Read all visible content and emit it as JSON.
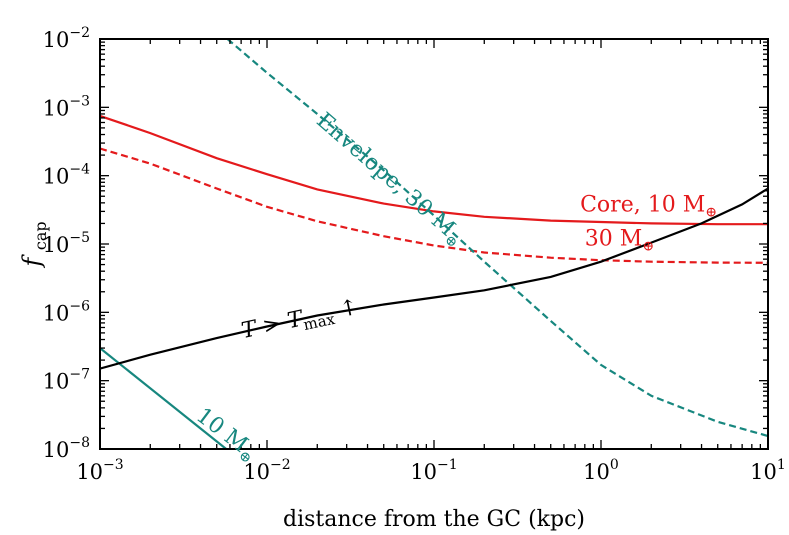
{
  "chart_data": {
    "type": "line",
    "xscale": "log",
    "yscale": "log",
    "xlim": [
      0.001,
      10
    ],
    "ylim": [
      1e-08,
      0.01
    ],
    "xlabel": "distance from the GC (kpc)",
    "ylabel": {
      "main": "f",
      "sub": "cap"
    },
    "grid": false,
    "x_ticks": [
      {
        "base": "10",
        "exp": "−3",
        "value": 0.001
      },
      {
        "base": "10",
        "exp": "−2",
        "value": 0.01
      },
      {
        "base": "10",
        "exp": "−1",
        "value": 0.1
      },
      {
        "base": "10",
        "exp": "0",
        "value": 1
      },
      {
        "base": "10",
        "exp": "1",
        "value": 10
      }
    ],
    "y_ticks": [
      {
        "base": "10",
        "exp": "−8",
        "value": 1e-08
      },
      {
        "base": "10",
        "exp": "−7",
        "value": 1e-07
      },
      {
        "base": "10",
        "exp": "−6",
        "value": 1e-06
      },
      {
        "base": "10",
        "exp": "−5",
        "value": 1e-05
      },
      {
        "base": "10",
        "exp": "−4",
        "value": 0.0001
      },
      {
        "base": "10",
        "exp": "−3",
        "value": 0.001
      },
      {
        "base": "10",
        "exp": "−2",
        "value": 0.01
      }
    ],
    "series": [
      {
        "name": "core-10",
        "color": "#e41a1c",
        "dash": "solid",
        "points": [
          [
            0.001,
            0.00075
          ],
          [
            0.002,
            0.00042
          ],
          [
            0.005,
            0.00018
          ],
          [
            0.01,
            0.000105
          ],
          [
            0.02,
            6.3e-05
          ],
          [
            0.05,
            3.9e-05
          ],
          [
            0.1,
            3e-05
          ],
          [
            0.2,
            2.5e-05
          ],
          [
            0.5,
            2.2e-05
          ],
          [
            1,
            2.1e-05
          ],
          [
            2,
            2e-05
          ],
          [
            5,
            1.95e-05
          ],
          [
            10,
            1.95e-05
          ]
        ]
      },
      {
        "name": "core-30",
        "color": "#e41a1c",
        "dash": "dashed",
        "points": [
          [
            0.001,
            0.00025
          ],
          [
            0.002,
            0.00015
          ],
          [
            0.005,
            6.5e-05
          ],
          [
            0.01,
            3.5e-05
          ],
          [
            0.02,
            2.15e-05
          ],
          [
            0.05,
            1.3e-05
          ],
          [
            0.1,
            9.5e-06
          ],
          [
            0.2,
            7.5e-06
          ],
          [
            0.5,
            6.3e-06
          ],
          [
            1,
            5.8e-06
          ],
          [
            2,
            5.5e-06
          ],
          [
            5,
            5.35e-06
          ],
          [
            10,
            5.3e-06
          ]
        ]
      },
      {
        "name": "envelope-30",
        "color": "#17877f",
        "dash": "dashed",
        "points": [
          [
            0.0058,
            0.01
          ],
          [
            0.01,
            0.0032
          ],
          [
            0.02,
            0.0008
          ],
          [
            0.05,
            0.00012
          ],
          [
            0.1,
            2.6e-05
          ],
          [
            0.2,
            5.5e-06
          ],
          [
            0.5,
            7.5e-07
          ],
          [
            1,
            1.7e-07
          ],
          [
            2,
            6e-08
          ],
          [
            5,
            2.5e-08
          ],
          [
            10,
            1.55e-08
          ]
        ]
      },
      {
        "name": "envelope-10",
        "color": "#17877f",
        "dash": "solid",
        "points": [
          [
            0.001,
            3e-07
          ],
          [
            0.0057,
            1e-08
          ]
        ]
      },
      {
        "name": "t-max",
        "color": "#000000",
        "dash": "solid",
        "points": [
          [
            0.001,
            1.5e-07
          ],
          [
            0.002,
            2.4e-07
          ],
          [
            0.005,
            4.2e-07
          ],
          [
            0.01,
            6.2e-07
          ],
          [
            0.02,
            9e-07
          ],
          [
            0.05,
            1.3e-06
          ],
          [
            0.1,
            1.65e-06
          ],
          [
            0.2,
            2.1e-06
          ],
          [
            0.5,
            3.3e-06
          ],
          [
            1,
            5.5e-06
          ],
          [
            2,
            1.05e-05
          ],
          [
            4,
            2e-05
          ],
          [
            7,
            3.8e-05
          ],
          [
            10,
            6.5e-05
          ]
        ]
      }
    ],
    "annotations": [
      {
        "text": "Core, 10 M",
        "subscript": "⊕",
        "color": "#e41a1c",
        "x": 0.75,
        "y": 3e-05,
        "rotate": 0
      },
      {
        "text": "30 M",
        "subscript": "⊕",
        "color": "#e41a1c",
        "x": 0.8,
        "y": 9.5e-06,
        "rotate": 0
      },
      {
        "text": "Envelope, 30 M",
        "subscript": "⊕",
        "color": "#17877f",
        "x": 0.0195,
        "y": 0.0006,
        "rotate": 41
      },
      {
        "text": "10 M",
        "subscript": "⊕",
        "color": "#17877f",
        "x": 0.0037,
        "y": 2.8e-08,
        "rotate": 37
      }
    ],
    "tmax_label": {
      "t": "T",
      "gt": " > ",
      "tmax": "T",
      "sub": "max",
      "arrow": " ↑",
      "x": 0.0072,
      "y": 4.2e-07,
      "rotate": -12
    }
  }
}
